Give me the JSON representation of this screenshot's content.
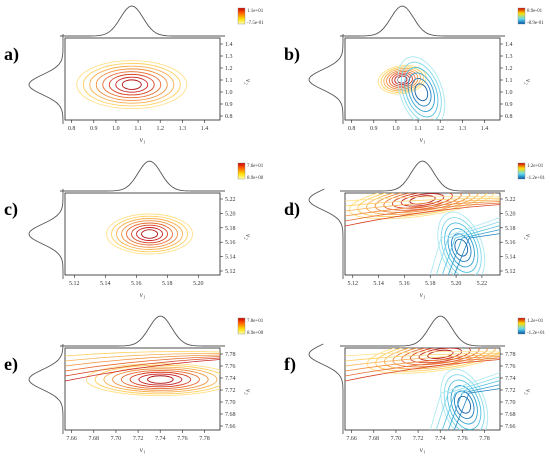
{
  "figure": {
    "panels": [
      {
        "letter": "a)",
        "type": "synchronous",
        "xlabel": "ν₁",
        "ylabel": "ν₂",
        "xticks": [
          "0.8",
          "0.9",
          "1.0",
          "1.1",
          "1.2",
          "1.3",
          "1.4"
        ],
        "yticks": [
          "1.4",
          "1.3",
          "1.2",
          "1.1",
          "1.0",
          "0.9",
          "0.8"
        ],
        "colorbar": {
          "max": "1.1e+01",
          "min": "-7.5e-01",
          "colors": [
            "#cc0000",
            "#ff6600",
            "#ffdd00",
            "#ffffaa"
          ]
        }
      },
      {
        "letter": "b)",
        "type": "asynchronous",
        "xlabel": "ν₁",
        "ylabel": "ν₂",
        "xticks": [
          "0.8",
          "0.9",
          "1.0",
          "1.1",
          "1.2",
          "1.3",
          "1.4"
        ],
        "yticks": [
          "1.4",
          "1.3",
          "1.2",
          "1.1",
          "1.0",
          "0.9",
          "0.8"
        ],
        "colorbar": {
          "max": "8.9e-01",
          "min": "-8.9e-01",
          "colors": [
            "#cc0000",
            "#ffdd00",
            "#66ddee",
            "#0055aa"
          ]
        }
      },
      {
        "letter": "c)",
        "type": "synchronous",
        "xlabel": "ν₁",
        "ylabel": "ν₂",
        "xticks": [
          "5.12",
          "5.14",
          "5.16",
          "5.18",
          "5.20"
        ],
        "yticks": [
          "5.22",
          "5.20",
          "5.18",
          "5.16",
          "5.14",
          "5.12"
        ],
        "colorbar": {
          "max": "7.6e+01",
          "min": "8.9e+00",
          "colors": [
            "#cc0000",
            "#ff6600",
            "#ffdd00",
            "#ffffaa"
          ]
        }
      },
      {
        "letter": "d)",
        "type": "asynchronous",
        "xlabel": "ν₁",
        "ylabel": "ν₂",
        "xticks": [
          "5.12",
          "5.14",
          "5.16",
          "5.18",
          "5.20",
          "5.22"
        ],
        "yticks": [
          "5.22",
          "5.20",
          "5.18",
          "5.16",
          "5.14",
          "5.12"
        ],
        "colorbar": {
          "max": "1.2e+01",
          "min": "-1.2e+01",
          "colors": [
            "#cc0000",
            "#ffdd00",
            "#66ddee",
            "#0055aa"
          ]
        }
      },
      {
        "letter": "e)",
        "type": "synchronous",
        "xlabel": "ν₁",
        "ylabel": "ν₂",
        "xticks": [
          "7.66",
          "7.68",
          "7.70",
          "7.72",
          "7.74",
          "7.76",
          "7.78"
        ],
        "yticks": [
          "7.78",
          "7.76",
          "7.74",
          "7.72",
          "7.70",
          "7.68",
          "7.66"
        ],
        "colorbar": {
          "max": "7.8e+01",
          "min": "8.9e+00",
          "colors": [
            "#cc0000",
            "#ff6600",
            "#ffdd00",
            "#ffffaa"
          ]
        }
      },
      {
        "letter": "f)",
        "type": "asynchronous",
        "xlabel": "ν₁",
        "ylabel": "ν₂",
        "xticks": [
          "7.66",
          "7.68",
          "7.70",
          "7.72",
          "7.74",
          "7.76",
          "7.78"
        ],
        "yticks": [
          "7.78",
          "7.76",
          "7.74",
          "7.72",
          "7.70",
          "7.68",
          "7.66"
        ],
        "colorbar": {
          "max": "1.2e+01",
          "min": "-1.2e+01",
          "colors": [
            "#cc0000",
            "#ffdd00",
            "#66ddee",
            "#0055aa"
          ]
        }
      }
    ]
  },
  "chart_data": [
    {
      "type": "heatmap",
      "panel": "a)",
      "x_range": [
        0.8,
        1.45
      ],
      "y_range": [
        0.8,
        1.45
      ],
      "peaks": [
        {
          "x": 1.08,
          "y": 1.08,
          "sign": "positive"
        }
      ],
      "color_range": [
        -0.75,
        11
      ]
    },
    {
      "type": "heatmap",
      "panel": "b)",
      "x_range": [
        0.8,
        1.45
      ],
      "y_range": [
        0.8,
        1.45
      ],
      "peaks": [
        {
          "x": 1.04,
          "y": 1.12,
          "sign": "positive"
        },
        {
          "x": 1.12,
          "y": 1.02,
          "sign": "negative"
        }
      ],
      "color_range": [
        -0.89,
        0.89
      ]
    },
    {
      "type": "heatmap",
      "panel": "c)",
      "x_range": [
        5.11,
        5.22
      ],
      "y_range": [
        5.11,
        5.23
      ],
      "peaks": [
        {
          "x": 5.17,
          "y": 5.17,
          "sign": "positive"
        }
      ],
      "color_range": [
        8.9,
        76
      ]
    },
    {
      "type": "heatmap",
      "panel": "d)",
      "x_range": [
        5.11,
        5.23
      ],
      "y_range": [
        5.11,
        5.23
      ],
      "peaks": [
        {
          "x": 5.17,
          "y": 5.22,
          "sign": "positive"
        },
        {
          "x": 5.2,
          "y": 5.15,
          "sign": "negative"
        }
      ],
      "color_range": [
        -12,
        12
      ]
    },
    {
      "type": "heatmap",
      "panel": "e)",
      "x_range": [
        7.66,
        7.79
      ],
      "y_range": [
        7.66,
        7.79
      ],
      "peaks": [
        {
          "x": 7.74,
          "y": 7.74,
          "sign": "positive"
        }
      ],
      "color_range": [
        8.9,
        78
      ]
    },
    {
      "type": "heatmap",
      "panel": "f)",
      "x_range": [
        7.66,
        7.79
      ],
      "y_range": [
        7.66,
        7.79
      ],
      "peaks": [
        {
          "x": 7.74,
          "y": 7.78,
          "sign": "positive"
        },
        {
          "x": 7.76,
          "y": 7.7,
          "sign": "negative"
        }
      ],
      "color_range": [
        -12,
        12
      ]
    }
  ]
}
